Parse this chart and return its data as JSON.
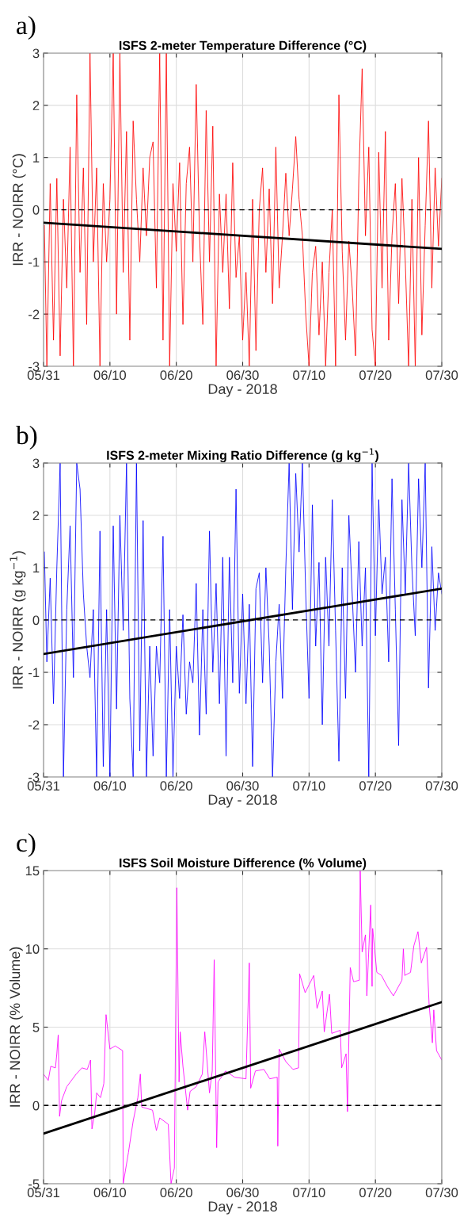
{
  "chart_data": [
    {
      "type": "line",
      "title": "ISFS 2-meter Temperature Difference (°C)",
      "xlabel": "Day - 2018",
      "ylabel": "IRR - NOIRR (°C)",
      "annotations": [
        "a)"
      ],
      "x": [
        "2018-05-31T03:00",
        "2018-05-31T12:00",
        "2018-06-01",
        "2018-06-01T12:00",
        "2018-06-02",
        "2018-06-02T12:00",
        "2018-06-03",
        "2018-06-03T12:00",
        "2018-06-04",
        "2018-06-04T12:00",
        "2018-06-05",
        "2018-06-05T12:00",
        "2018-06-06",
        "2018-06-06T12:00",
        "2018-06-07",
        "2018-06-07T12:00",
        "2018-06-08",
        "2018-06-08T12:00",
        "2018-06-09",
        "2018-06-09T12:00",
        "2018-06-10",
        "2018-06-10T12:00",
        "2018-06-11",
        "2018-06-11T12:00",
        "2018-06-12",
        "2018-06-12T12:00",
        "2018-06-13",
        "2018-06-13T12:00",
        "2018-06-14",
        "2018-06-14T12:00",
        "2018-06-15",
        "2018-06-15T12:00",
        "2018-06-16",
        "2018-06-16T12:00",
        "2018-06-17",
        "2018-06-17T12:00",
        "2018-06-18",
        "2018-06-18T12:00",
        "2018-06-19",
        "2018-06-19T12:00",
        "2018-06-20",
        "2018-06-20T12:00",
        "2018-06-21",
        "2018-06-21T12:00",
        "2018-06-22",
        "2018-06-22T12:00",
        "2018-06-23",
        "2018-06-23T12:00",
        "2018-06-24",
        "2018-06-24T12:00",
        "2018-06-25",
        "2018-06-25T12:00",
        "2018-06-26",
        "2018-06-26T12:00",
        "2018-06-27",
        "2018-06-27T12:00",
        "2018-06-28",
        "2018-06-28T12:00",
        "2018-06-29",
        "2018-06-29T12:00",
        "2018-06-30",
        "2018-06-30T12:00",
        "2018-07-01",
        "2018-07-01T12:00",
        "2018-07-02",
        "2018-07-02T12:00",
        "2018-07-03",
        "2018-07-03T12:00",
        "2018-07-04",
        "2018-07-04T12:00",
        "2018-07-05",
        "2018-07-05T12:00",
        "2018-07-06",
        "2018-07-06T12:00",
        "2018-07-07",
        "2018-07-07T12:00",
        "2018-07-08",
        "2018-07-08T12:00",
        "2018-07-09",
        "2018-07-09T12:00",
        "2018-07-10",
        "2018-07-10T12:00",
        "2018-07-11",
        "2018-07-11T12:00",
        "2018-07-12",
        "2018-07-12T12:00",
        "2018-07-13",
        "2018-07-13T12:00",
        "2018-07-14",
        "2018-07-14T12:00",
        "2018-07-15",
        "2018-07-15T12:00",
        "2018-07-16",
        "2018-07-16T12:00",
        "2018-07-17",
        "2018-07-17T12:00",
        "2018-07-18",
        "2018-07-18T12:00",
        "2018-07-19",
        "2018-07-19T12:00",
        "2018-07-20",
        "2018-07-20T12:00",
        "2018-07-21",
        "2018-07-21T12:00",
        "2018-07-22",
        "2018-07-22T12:00",
        "2018-07-23",
        "2018-07-23T12:00",
        "2018-07-24",
        "2018-07-24T12:00",
        "2018-07-25",
        "2018-07-25T12:00",
        "2018-07-26",
        "2018-07-26T12:00",
        "2018-07-27",
        "2018-07-27T12:00",
        "2018-07-28",
        "2018-07-28T12:00",
        "2018-07-29",
        "2018-07-29T12:00",
        "2018-07-30"
      ],
      "series": [
        {
          "color": "#ff0000",
          "values": [
            -0.3,
            -3,
            0.5,
            -2.5,
            0.6,
            -2.8,
            0.2,
            -1.5,
            1.2,
            -3,
            2.2,
            -1.2,
            0.8,
            -2.2,
            3,
            -1,
            0.8,
            -3,
            0.5,
            -1,
            0.2,
            3,
            -2,
            3,
            -1.2,
            1.5,
            -2.5,
            1.7,
            0.2,
            -1,
            0.8,
            -0.5,
            1.0,
            1.3,
            -1.5,
            3,
            -2.5,
            3,
            -3,
            0.5,
            -0.8,
            0.9,
            -2.2,
            0.5,
            1.2,
            -1,
            2.4,
            -0.5,
            -2.2,
            1.9,
            -1,
            1.6,
            -3,
            0.3,
            -1.2,
            0.3,
            -1.9,
            0.9,
            -1.3,
            -0.5,
            -2.5,
            -1.2,
            -3,
            0.2,
            -2.7,
            0,
            0.8,
            -1.2,
            0.4,
            -1.8,
            1.2,
            -1.5,
            -0.5,
            0.7,
            -0.5,
            0.4,
            1.4,
            0.2,
            -0.5,
            -2,
            -3,
            -1.2,
            -0.7,
            -2.4,
            -1,
            -3,
            -1.2,
            0,
            -3,
            2.2,
            -0.8,
            -2.5,
            -0.6,
            -1.5,
            -2.8,
            0.6,
            2.7,
            -0.5,
            1.2,
            -2.3,
            -3,
            1.1,
            -1.5,
            1.5,
            -2.5,
            -0.5,
            0.5,
            -1.8,
            0.6,
            -1,
            -3,
            0.2,
            -3,
            1.0,
            -2.4,
            -0.3,
            1.7,
            -1.5,
            0.8,
            -0.7,
            0.6
          ]
        },
        {
          "type": "line",
          "color": "#000000",
          "x": [
            "2018-05-31",
            "2018-07-30"
          ],
          "values": [
            -0.25,
            -0.75
          ]
        }
      ],
      "ref_lines": [
        {
          "axis": "y",
          "value": 0,
          "color": "#000000",
          "line_style": "dashed"
        }
      ],
      "xlim": [
        "2018-05-31",
        "2018-07-30"
      ],
      "xticks": [
        {
          "value": "2018-05-31",
          "label": "05/31"
        },
        {
          "value": "2018-06-10",
          "label": "06/10"
        },
        {
          "value": "2018-06-20",
          "label": "06/20"
        },
        {
          "value": "2018-06-30",
          "label": "06/30"
        },
        {
          "value": "2018-07-10",
          "label": "07/10"
        },
        {
          "value": "2018-07-20",
          "label": "07/20"
        },
        {
          "value": "2018-07-30",
          "label": "07/30"
        }
      ],
      "ylim": [
        -3,
        3
      ],
      "yticks": [
        -3,
        -2,
        -1,
        0,
        1,
        2,
        3
      ],
      "grid": true
    },
    {
      "type": "line",
      "title": "ISFS 2-meter Mixing Ratio Difference (g kg$^{−1}$)",
      "xlabel": "Day - 2018",
      "ylabel": "IRR - NOIRR (g kg$^{−1}$)",
      "annotations": [
        "b)"
      ],
      "x": [
        "2018-05-31T03:00",
        "2018-05-31T12:00",
        "2018-06-01",
        "2018-06-01T12:00",
        "2018-06-02",
        "2018-06-02T12:00",
        "2018-06-03",
        "2018-06-03T12:00",
        "2018-06-04",
        "2018-06-04T12:00",
        "2018-06-05",
        "2018-06-05T12:00",
        "2018-06-06",
        "2018-06-06T12:00",
        "2018-06-07",
        "2018-06-07T12:00",
        "2018-06-08",
        "2018-06-08T12:00",
        "2018-06-09",
        "2018-06-09T12:00",
        "2018-06-10",
        "2018-06-10T12:00",
        "2018-06-11",
        "2018-06-11T12:00",
        "2018-06-12",
        "2018-06-12T12:00",
        "2018-06-13",
        "2018-06-13T12:00",
        "2018-06-14",
        "2018-06-14T12:00",
        "2018-06-15",
        "2018-06-15T12:00",
        "2018-06-16",
        "2018-06-16T12:00",
        "2018-06-17",
        "2018-06-17T12:00",
        "2018-06-18",
        "2018-06-18T12:00",
        "2018-06-19",
        "2018-06-19T12:00",
        "2018-06-20",
        "2018-06-20T12:00",
        "2018-06-21",
        "2018-06-21T12:00",
        "2018-06-22",
        "2018-06-22T12:00",
        "2018-06-23",
        "2018-06-23T12:00",
        "2018-06-24",
        "2018-06-24T12:00",
        "2018-06-25",
        "2018-06-25T12:00",
        "2018-06-26",
        "2018-06-26T12:00",
        "2018-06-27",
        "2018-06-27T12:00",
        "2018-06-28",
        "2018-06-28T12:00",
        "2018-06-29",
        "2018-06-29T12:00",
        "2018-06-30",
        "2018-06-30T12:00",
        "2018-07-01",
        "2018-07-01T12:00",
        "2018-07-02",
        "2018-07-02T12:00",
        "2018-07-03",
        "2018-07-03T12:00",
        "2018-07-04",
        "2018-07-04T12:00",
        "2018-07-05",
        "2018-07-05T12:00",
        "2018-07-06",
        "2018-07-06T12:00",
        "2018-07-07",
        "2018-07-07T12:00",
        "2018-07-08",
        "2018-07-08T12:00",
        "2018-07-09",
        "2018-07-09T12:00",
        "2018-07-10",
        "2018-07-10T12:00",
        "2018-07-11",
        "2018-07-11T12:00",
        "2018-07-12",
        "2018-07-12T12:00",
        "2018-07-13",
        "2018-07-13T12:00",
        "2018-07-14",
        "2018-07-14T12:00",
        "2018-07-15",
        "2018-07-15T12:00",
        "2018-07-16",
        "2018-07-16T12:00",
        "2018-07-17",
        "2018-07-17T12:00",
        "2018-07-18",
        "2018-07-18T12:00",
        "2018-07-19",
        "2018-07-19T12:00",
        "2018-07-20",
        "2018-07-20T12:00",
        "2018-07-21",
        "2018-07-21T12:00",
        "2018-07-22",
        "2018-07-22T12:00",
        "2018-07-23",
        "2018-07-23T12:00",
        "2018-07-24",
        "2018-07-24T12:00",
        "2018-07-25",
        "2018-07-25T12:00",
        "2018-07-26",
        "2018-07-26T12:00",
        "2018-07-27",
        "2018-07-27T12:00",
        "2018-07-28",
        "2018-07-28T12:00",
        "2018-07-29",
        "2018-07-29T12:00",
        "2018-07-30"
      ],
      "series": [
        {
          "color": "#0000ff",
          "values": [
            1.3,
            -0.8,
            0.8,
            -1.6,
            1.0,
            3,
            -3,
            0.2,
            1.8,
            -1.1,
            3,
            2.5,
            0.5,
            -0.5,
            -1.1,
            0.2,
            -3,
            1.7,
            -2.8,
            0.2,
            -3,
            1.8,
            -1.7,
            2.0,
            -0.2,
            3,
            -1.5,
            -3,
            3,
            -2.5,
            1.9,
            -3,
            -0.5,
            -2.6,
            -0.5,
            -1.2,
            1.6,
            -3,
            0.2,
            -3,
            -0.5,
            -1.5,
            0.1,
            -1.8,
            -0.8,
            -1.2,
            0.7,
            -2.2,
            0.2,
            -1.8,
            1.7,
            -1.0,
            0.7,
            -1.6,
            1.2,
            -2.6,
            1.2,
            -1.2,
            2.5,
            -1.4,
            0.5,
            -1.6,
            0.3,
            -2.8,
            0.6,
            0.9,
            -1.2,
            1.0,
            -0.5,
            -3,
            -0.8,
            0.3,
            -1.5,
            1.0,
            3,
            0.2,
            2.8,
            1.3,
            3,
            0.5,
            -1.5,
            2.2,
            -0.5,
            1.1,
            -2,
            1.2,
            -0.5,
            2.3,
            -0.2,
            -2.7,
            1.0,
            -1.5,
            2.0,
            0.5,
            -1.0,
            1.5,
            -0.5,
            1.0,
            -3,
            3,
            -0.3,
            2.3,
            0.5,
            1.2,
            -0.8,
            2.7,
            0.2,
            -2.4,
            2.3,
            0.5,
            3,
            1.0,
            -0.3,
            2.7,
            1.0,
            3,
            -1.3,
            1.4,
            -0.2,
            0.9,
            0.5
          ]
        },
        {
          "type": "line",
          "color": "#000000",
          "x": [
            "2018-05-31",
            "2018-07-30"
          ],
          "values": [
            -0.65,
            0.6
          ]
        }
      ],
      "ref_lines": [
        {
          "axis": "y",
          "value": 0,
          "color": "#000000",
          "line_style": "dashed"
        }
      ],
      "xlim": [
        "2018-05-31",
        "2018-07-30"
      ],
      "xticks": [
        {
          "value": "2018-05-31",
          "label": "05/31"
        },
        {
          "value": "2018-06-10",
          "label": "06/10"
        },
        {
          "value": "2018-06-20",
          "label": "06/20"
        },
        {
          "value": "2018-06-30",
          "label": "06/30"
        },
        {
          "value": "2018-07-10",
          "label": "07/10"
        },
        {
          "value": "2018-07-20",
          "label": "07/20"
        },
        {
          "value": "2018-07-30",
          "label": "07/30"
        }
      ],
      "ylim": [
        -3,
        3
      ],
      "yticks": [
        -3,
        -2,
        -1,
        0,
        1,
        2,
        3
      ],
      "grid": true
    },
    {
      "type": "line",
      "title": "ISFS Soil Moisture Difference (% Volume)",
      "xlabel": "Day - 2018",
      "ylabel": "IRR - NOIRR (% Volume)",
      "annotations": [
        "c)"
      ],
      "series": [
        {
          "color": "#ff00ff",
          "x": [
            "2018-05-31",
            "2018-05-31T17:00",
            "2018-06-01T02:00",
            "2018-06-01T19:00",
            "2018-06-02",
            "2018-06-02T05:00",
            "2018-06-02T10:00",
            "2018-06-02T17:00",
            "2018-06-03T12:00",
            "2018-06-04T22:00",
            "2018-06-05T19:00",
            "2018-06-06T14:00",
            "2018-06-07T02:00",
            "2018-06-07T07:00",
            "2018-06-07T17:00",
            "2018-06-08",
            "2018-06-08T14:00",
            "2018-06-09T02:00",
            "2018-06-09T10:00",
            "2018-06-10",
            "2018-06-10T19:00",
            "2018-06-11T22:00",
            "2018-06-12",
            "2018-06-12T19:00",
            "2018-06-13T12:00",
            "2018-06-14T05:00",
            "2018-06-14T14:00",
            "2018-06-14T19:00",
            "2018-06-16T10:00",
            "2018-06-17",
            "2018-06-17T12:00",
            "2018-06-18T19:00",
            "2018-06-19T05:00",
            "2018-06-19T17:00",
            "2018-06-20T02:00",
            "2018-06-20T10:00",
            "2018-06-20T14:00",
            "2018-06-21",
            "2018-06-21T17:00",
            "2018-06-22T02:00",
            "2018-06-23",
            "2018-06-23T22:00",
            "2018-06-24T07:00",
            "2018-06-25",
            "2018-06-25T10:00",
            "2018-06-25T17:00",
            "2018-06-26T02:00",
            "2018-06-26T07:00",
            "2018-06-27T10:00",
            "2018-06-28T19:00",
            "2018-06-30T12:00",
            "2018-07-01",
            "2018-07-01T05:00",
            "2018-07-01T22:00",
            "2018-07-03T05:00",
            "2018-07-04T02:00",
            "2018-07-05T05:00",
            "2018-07-05T07:00",
            "2018-07-05T12:00",
            "2018-07-06T12:00",
            "2018-07-07T14:00",
            "2018-07-08T10:00",
            "2018-07-08T14:00",
            "2018-07-09T10:00",
            "2018-07-10T17:00",
            "2018-07-11T05:00",
            "2018-07-12",
            "2018-07-12T07:00",
            "2018-07-13T02:00",
            "2018-07-13T10:00",
            "2018-07-14T17:00",
            "2018-07-14T22:00",
            "2018-07-15T14:00",
            "2018-07-15T19:00",
            "2018-07-16T05:00",
            "2018-07-16T17:00",
            "2018-07-17T14:00",
            "2018-07-17T17:00",
            "2018-07-18",
            "2018-07-18T12:00",
            "2018-07-18T17:00",
            "2018-07-19T07:00",
            "2018-07-19T12:00",
            "2018-07-19T14:00",
            "2018-07-20T05:00",
            "2018-07-20T22:00",
            "2018-07-21T19:00",
            "2018-07-22T17:00",
            "2018-07-24",
            "2018-07-24T05:00",
            "2018-07-24T10:00",
            "2018-07-25T07:00",
            "2018-07-25T19:00",
            "2018-07-26T10:00",
            "2018-07-26T22:00",
            "2018-07-27T17:00",
            "2018-07-28T02:00",
            "2018-07-28T14:00",
            "2018-07-28T19:00",
            "2018-07-29T05:00",
            "2018-07-30"
          ],
          "values": [
            2.0,
            1.6,
            2.5,
            2.4,
            3.3,
            4.5,
            -0.7,
            0.3,
            1.2,
            2.0,
            2.4,
            2.3,
            2.9,
            -1.5,
            -0.5,
            0.8,
            0.5,
            1.4,
            5.8,
            3.6,
            3.8,
            3.5,
            -5,
            -3,
            -1.0,
            0.5,
            2.0,
            -0.1,
            -0.3,
            -1.6,
            -0.8,
            -1.2,
            -5,
            -4.0,
            13.9,
            1.5,
            4.7,
            2.5,
            -0.3,
            0.9,
            1.2,
            2.0,
            4.7,
            0.8,
            2.2,
            9.3,
            -2.7,
            1.5,
            2.2,
            1.8,
            1.7,
            9.1,
            1.1,
            2.2,
            2.3,
            1.7,
            1.8,
            -2.6,
            3.6,
            2.8,
            2.3,
            2.4,
            8.4,
            7.2,
            8.3,
            6.2,
            7.3,
            4.7,
            7.1,
            4.6,
            4.8,
            2.4,
            3.3,
            -0.4,
            8.8,
            7.9,
            8.0,
            15,
            9.8,
            10.9,
            7.0,
            12.8,
            7.6,
            11.3,
            8.5,
            8.3,
            7.6,
            7.0,
            8.0,
            10.0,
            8.3,
            8.5,
            10.2,
            11.1,
            9.1,
            10.1,
            6.5,
            4.0,
            6.1,
            3.5,
            2.9
          ]
        },
        {
          "type": "line",
          "color": "#000000",
          "x": [
            "2018-05-31",
            "2018-07-30"
          ],
          "values": [
            -1.8,
            6.6
          ]
        }
      ],
      "ref_lines": [
        {
          "axis": "y",
          "value": 0,
          "color": "#000000",
          "line_style": "dashed"
        }
      ],
      "xlim": [
        "2018-05-31",
        "2018-07-30"
      ],
      "xticks": [
        {
          "value": "2018-05-31",
          "label": "05/31"
        },
        {
          "value": "2018-06-10",
          "label": "06/10"
        },
        {
          "value": "2018-06-20",
          "label": "06/20"
        },
        {
          "value": "2018-06-30",
          "label": "06/30"
        },
        {
          "value": "2018-07-10",
          "label": "07/10"
        },
        {
          "value": "2018-07-20",
          "label": "07/20"
        },
        {
          "value": "2018-07-30",
          "label": "07/30"
        }
      ],
      "ylim": [
        -5,
        15
      ],
      "yticks": [
        -5,
        0,
        5,
        10,
        15
      ],
      "grid": true
    }
  ]
}
